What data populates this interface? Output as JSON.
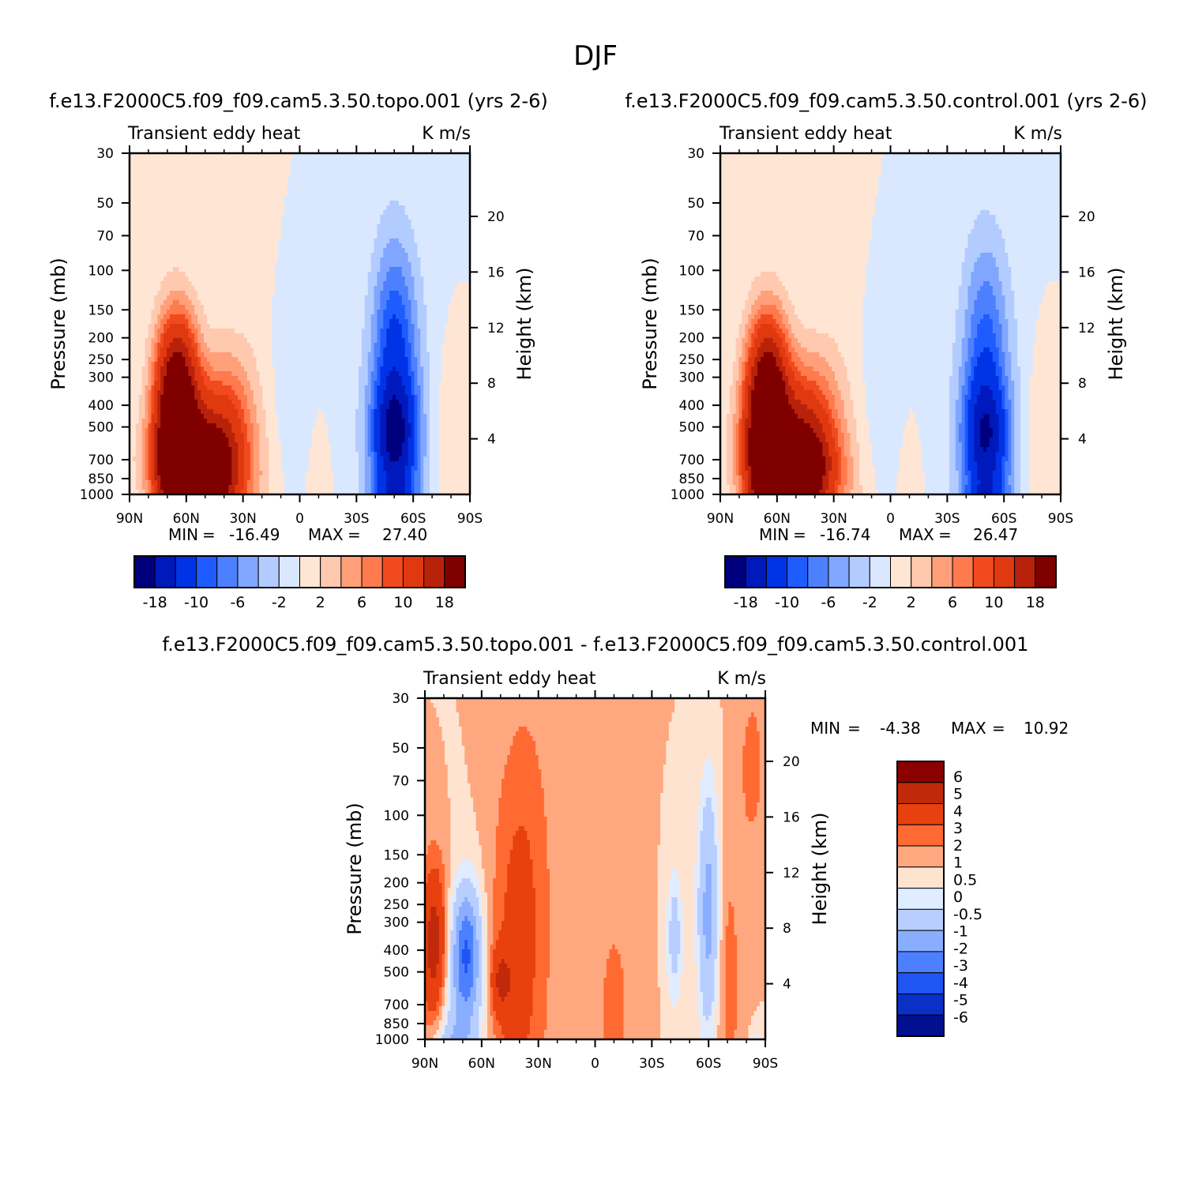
{
  "page_title": "DJF",
  "palette_main": [
    "#00007f",
    "#0019bc",
    "#0033e6",
    "#1f5cff",
    "#4d80ff",
    "#80a6ff",
    "#b3ccff",
    "#d9e8ff",
    "#ffe6d4",
    "#ffc9b0",
    "#ffa07a",
    "#ff7a4d",
    "#f24a1f",
    "#e0380f",
    "#b8220a",
    "#800000"
  ],
  "palette_diff": [
    "#8b0000",
    "#c02a0a",
    "#e8400f",
    "#ff6a33",
    "#ffa880",
    "#ffe3d1",
    "#e0ecff",
    "#b8ceff",
    "#8aaeff",
    "#4d80ff",
    "#1f55f2",
    "#0a30c8",
    "#00108f"
  ],
  "chart_data": [
    {
      "id": "topo",
      "type": "contour",
      "title": "f.e13.F2000C5.f09_f09.cam5.3.50.topo.001  (yrs 2-6)",
      "left_label": "Transient eddy heat",
      "right_label": "K m/s",
      "ylabel": "Pressure (mb)",
      "y2label": "Height (km)",
      "xticks": [
        "90N",
        "60N",
        "30N",
        "0",
        "30S",
        "60S",
        "90S"
      ],
      "yticks": [
        "30",
        "50",
        "70",
        "100",
        "150",
        "200",
        "250",
        "300",
        "400",
        "500",
        "700",
        "850",
        "1000"
      ],
      "y2ticks": [
        "20",
        "16",
        "12",
        "8",
        "4"
      ],
      "min_label": "MIN",
      "min_value": "-16.49",
      "max_label": "MAX",
      "max_value": "27.40",
      "equals": "=",
      "colorbar_labels": [
        "-18",
        "-10",
        "-6",
        "-2",
        "2",
        "6",
        "10",
        "18"
      ],
      "features": [
        {
          "lat": 65,
          "lp": 0.97,
          "amp": 22,
          "wlat": 8,
          "wlp": 0.6
        },
        {
          "lat": 55,
          "lp": 0.25,
          "amp": 15,
          "wlat": 13,
          "wlp": 0.28
        },
        {
          "lat": 40,
          "lp": 0.65,
          "amp": 10,
          "wlat": 10,
          "wlp": 0.55
        },
        {
          "lat": 60,
          "lp": 0.45,
          "amp": 7,
          "wlat": 14,
          "wlp": 0.4
        },
        {
          "lat": 50,
          "lp": -0.3,
          "amp": 16,
          "wlat": 10,
          "wlp": 0.5
        },
        {
          "lat": 65,
          "lp": -0.15,
          "amp": 10,
          "wlat": 8,
          "wlp": 0.9
        },
        {
          "lat": 25,
          "lp": -0.1,
          "amp": 3.5,
          "wlat": 10,
          "wlp": 1.3
        },
        {
          "lat": 5,
          "lp": 0.9,
          "amp": -1.5,
          "wlat": 22,
          "wlp": 0.8
        },
        {
          "lat": -10,
          "lp": 0.3,
          "amp": 1.5,
          "wlat": 6,
          "wlp": 0.8
        },
        {
          "lat": -50,
          "lp": -0.4,
          "amp": -16,
          "wlat": 8,
          "wlp": 0.3
        },
        {
          "lat": -50,
          "lp": 0.6,
          "amp": -12,
          "wlat": 8,
          "wlp": 0.4
        },
        {
          "lat": -50,
          "lp": 1.5,
          "amp": -8,
          "wlat": 8,
          "wlp": 0.8
        },
        {
          "lat": -52,
          "lp": 0.2,
          "amp": -5,
          "wlat": 12,
          "wlp": 1.4
        },
        {
          "lat": -78,
          "lp": 0.5,
          "amp": 1.5,
          "wlat": 6,
          "wlp": 0.7
        }
      ]
    },
    {
      "id": "control",
      "type": "contour",
      "title": "f.e13.F2000C5.f09_f09.cam5.3.50.control.001  (yrs 2-6)",
      "left_label": "Transient eddy heat",
      "right_label": "K m/s",
      "ylabel": "Pressure (mb)",
      "y2label": "Height (km)",
      "xticks": [
        "90N",
        "60N",
        "30N",
        "0",
        "30S",
        "60S",
        "90S"
      ],
      "yticks": [
        "30",
        "50",
        "70",
        "100",
        "150",
        "200",
        "250",
        "300",
        "400",
        "500",
        "700",
        "850",
        "1000"
      ],
      "y2ticks": [
        "20",
        "16",
        "12",
        "8",
        "4"
      ],
      "min_label": "MIN",
      "min_value": "-16.74",
      "max_label": "MAX",
      "max_value": "26.47",
      "equals": "=",
      "colorbar_labels": [
        "-18",
        "-10",
        "-6",
        "-2",
        "2",
        "6",
        "10",
        "18"
      ],
      "features": [
        {
          "lat": 65,
          "lp": 0.97,
          "amp": 21,
          "wlat": 8,
          "wlp": 0.6
        },
        {
          "lat": 50,
          "lp": 0.25,
          "amp": 14,
          "wlat": 13,
          "wlp": 0.28
        },
        {
          "lat": 42,
          "lp": 0.65,
          "amp": 10,
          "wlat": 10,
          "wlp": 0.55
        },
        {
          "lat": 60,
          "lp": 0.45,
          "amp": 8,
          "wlat": 14,
          "wlp": 0.45
        },
        {
          "lat": 52,
          "lp": -0.3,
          "amp": 15,
          "wlat": 10,
          "wlp": 0.5
        },
        {
          "lat": 66,
          "lp": -0.15,
          "amp": 10,
          "wlat": 8,
          "wlp": 0.9
        },
        {
          "lat": 25,
          "lp": -0.1,
          "amp": 3.5,
          "wlat": 10,
          "wlp": 1.3
        },
        {
          "lat": 5,
          "lp": 0.9,
          "amp": -1.5,
          "wlat": 22,
          "wlp": 0.8
        },
        {
          "lat": -10,
          "lp": 0.3,
          "amp": 1.5,
          "wlat": 6,
          "wlp": 0.8
        },
        {
          "lat": -50,
          "lp": -0.4,
          "amp": -16,
          "wlat": 8,
          "wlp": 0.3
        },
        {
          "lat": -50,
          "lp": 0.6,
          "amp": -11,
          "wlat": 8,
          "wlp": 0.4
        },
        {
          "lat": -50,
          "lp": 1.5,
          "amp": -6,
          "wlat": 8,
          "wlp": 0.8
        },
        {
          "lat": -52,
          "lp": 0.2,
          "amp": -5,
          "wlat": 12,
          "wlp": 1.4
        },
        {
          "lat": -78,
          "lp": 0.5,
          "amp": 1.5,
          "wlat": 6,
          "wlp": 0.7
        }
      ]
    },
    {
      "id": "diff",
      "type": "contour",
      "title": "f.e13.F2000C5.f09_f09.cam5.3.50.topo.001 - f.e13.F2000C5.f09_f09.cam5.3.50.control.001",
      "left_label": "Transient eddy heat",
      "right_label": "K m/s",
      "ylabel": "Pressure (mb)",
      "y2label": "Height (km)",
      "xticks": [
        "90N",
        "60N",
        "30N",
        "0",
        "30S",
        "60S",
        "90S"
      ],
      "yticks": [
        "30",
        "50",
        "70",
        "100",
        "150",
        "200",
        "250",
        "300",
        "400",
        "500",
        "700",
        "850",
        "1000"
      ],
      "y2ticks": [
        "20",
        "16",
        "12",
        "8",
        "4"
      ],
      "min_label": "MIN",
      "min_value": "-4.38",
      "max_label": "MAX",
      "max_value": "10.92",
      "equals": "=",
      "colorbar_labels": [
        "6",
        "5",
        "4",
        "3",
        "2",
        "1",
        "0.5",
        "0",
        "-0.5",
        "-1",
        "-2",
        "-3",
        "-4",
        "-5",
        "-6"
      ],
      "features": [
        {
          "lat": 85,
          "lp": 0.95,
          "amp": 2.8,
          "wlat": 5,
          "wlp": 0.6
        },
        {
          "lat": 68,
          "lp": 0.9,
          "amp": -3.5,
          "wlat": 5,
          "wlp": 0.45
        },
        {
          "lat": 75,
          "lp": -0.5,
          "amp": -3,
          "wlat": 7,
          "wlp": 0.35
        },
        {
          "lat": 72,
          "lp": 0.1,
          "amp": -1.2,
          "wlat": 10,
          "wlp": 0.9
        },
        {
          "lat": 50,
          "lp": 0.6,
          "amp": 1.6,
          "wlat": 4,
          "wlp": 0.25
        },
        {
          "lat": 45,
          "lp": 0.6,
          "amp": 0.8,
          "wlat": 9,
          "wlp": 1.5
        },
        {
          "lat": 35,
          "lp": 1.3,
          "amp": 0.8,
          "wlat": 10,
          "wlp": 1.6
        },
        {
          "lat": -10,
          "lp": 0.3,
          "amp": 0.6,
          "wlat": 9,
          "wlp": 1.1
        },
        {
          "lat": -42,
          "lp": 1.05,
          "amp": -1.4,
          "wlat": 3,
          "wlp": 0.5
        },
        {
          "lat": -60,
          "lp": 1.3,
          "amp": -2.5,
          "wlat": 4,
          "wlp": 0.9
        },
        {
          "lat": -70,
          "lp": 0.6,
          "amp": 0.7,
          "wlat": 6,
          "wlp": 1.2
        },
        {
          "lat": -83,
          "lp": 2.8,
          "amp": 0.9,
          "wlat": 4,
          "wlp": 0.5
        },
        {
          "lat": -86,
          "lp": -0.25,
          "amp": -1.5,
          "wlat": 3,
          "wlp": 0.2
        }
      ]
    }
  ]
}
